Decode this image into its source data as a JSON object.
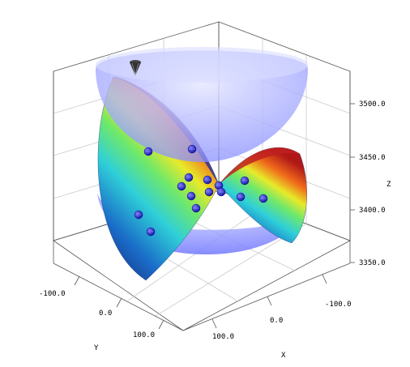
{
  "chart_data": {
    "type": "surface3d",
    "x_axis": {
      "label": "X",
      "ticks": [
        "100.0",
        "0.0",
        "-100.0"
      ]
    },
    "y_axis": {
      "label": "Y",
      "ticks": [
        "-100.0",
        "0.0",
        "100.0"
      ]
    },
    "z_axis": {
      "label": "Z",
      "ticks": [
        "3350.0",
        "3400.0",
        "3450.0",
        "3500.0"
      ]
    },
    "surfaces": [
      {
        "kind": "saddle",
        "colormap": "blue-cyan-green-yellow-red"
      },
      {
        "kind": "paraboloid-top",
        "color": "#aab0ff"
      },
      {
        "kind": "paraboloid-bottom",
        "color": "#9aa0ff"
      }
    ],
    "markers": [
      {
        "name": "points",
        "count": 15,
        "color": "#2222cc"
      },
      {
        "name": "cone-marker",
        "count": 1,
        "color": "#222222"
      }
    ],
    "grid": true
  }
}
